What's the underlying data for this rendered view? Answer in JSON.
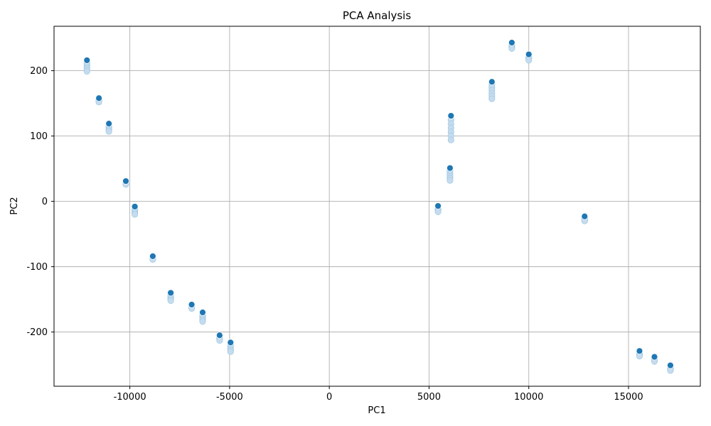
{
  "chart_data": {
    "type": "scatter",
    "title": "PCA Analysis",
    "xlabel": "PC1",
    "ylabel": "PC2",
    "xlim": [
      -13800,
      18600
    ],
    "ylim": [
      -283,
      268
    ],
    "xticks": [
      -10000,
      -5000,
      0,
      5000,
      10000,
      15000
    ],
    "xtick_labels": [
      "-10000",
      "-5000",
      "0",
      "5000",
      "10000",
      "15000"
    ],
    "yticks": [
      -200,
      -100,
      0,
      100,
      200
    ],
    "ytick_labels": [
      "-200",
      "-100",
      "0",
      "100",
      "200"
    ],
    "grid": true,
    "colors": {
      "primary": "#1f77b4",
      "trail": "#c6dbef",
      "trail_edge": "#9ecae1"
    },
    "clusters": [
      {
        "x": -12150,
        "y_top": 216,
        "y_bottom": 199
      },
      {
        "x": -11550,
        "y_top": 158,
        "y_bottom": 152
      },
      {
        "x": -11050,
        "y_top": 119,
        "y_bottom": 107
      },
      {
        "x": -10200,
        "y_top": 31,
        "y_bottom": 26
      },
      {
        "x": -9750,
        "y_top": -8,
        "y_bottom": -20
      },
      {
        "x": -8850,
        "y_top": -84,
        "y_bottom": -89
      },
      {
        "x": -7950,
        "y_top": -140,
        "y_bottom": -152
      },
      {
        "x": -6900,
        "y_top": -158,
        "y_bottom": -164
      },
      {
        "x": -6350,
        "y_top": -170,
        "y_bottom": -184
      },
      {
        "x": -5500,
        "y_top": -205,
        "y_bottom": -213
      },
      {
        "x": -4950,
        "y_top": -216,
        "y_bottom": -230
      },
      {
        "x": 5450,
        "y_top": -7,
        "y_bottom": -16
      },
      {
        "x": 6050,
        "y_top": 51,
        "y_bottom": 32
      },
      {
        "x": 6100,
        "y_top": 131,
        "y_bottom": 94
      },
      {
        "x": 8150,
        "y_top": 183,
        "y_bottom": 157
      },
      {
        "x": 9150,
        "y_top": 243,
        "y_bottom": 234
      },
      {
        "x": 10000,
        "y_top": 225,
        "y_bottom": 216
      },
      {
        "x": 12800,
        "y_top": -23,
        "y_bottom": -30
      },
      {
        "x": 15550,
        "y_top": -229,
        "y_bottom": -237
      },
      {
        "x": 16300,
        "y_top": -238,
        "y_bottom": -245
      },
      {
        "x": 17100,
        "y_top": -251,
        "y_bottom": -259
      }
    ]
  }
}
